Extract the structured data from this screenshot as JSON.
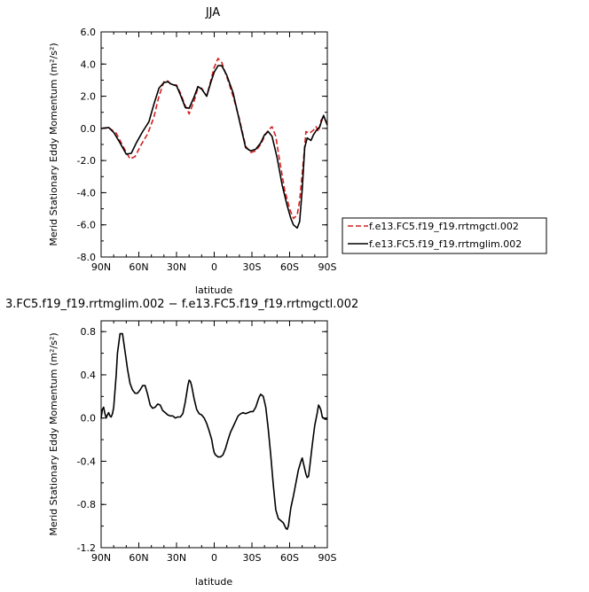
{
  "chart_data": [
    {
      "type": "line",
      "title": "JJA",
      "xlabel": "latitude",
      "ylabel": "Merid Stationary Eddy Momentum (m²/s²)",
      "xlim": [
        90,
        -90
      ],
      "ylim": [
        -8,
        6
      ],
      "xticks": [
        {
          "v": 90,
          "label": "90N"
        },
        {
          "v": 60,
          "label": "60N"
        },
        {
          "v": 30,
          "label": "30N"
        },
        {
          "v": 0,
          "label": "0"
        },
        {
          "v": -30,
          "label": "30S"
        },
        {
          "v": -60,
          "label": "60S"
        },
        {
          "v": -90,
          "label": "90S"
        }
      ],
      "yticks": [
        {
          "v": 6,
          "label": "6.0"
        },
        {
          "v": 4,
          "label": "4.0"
        },
        {
          "v": 2,
          "label": "2.0"
        },
        {
          "v": 0,
          "label": "0.0"
        },
        {
          "v": -2,
          "label": "-2.0"
        },
        {
          "v": -4,
          "label": "-4.0"
        },
        {
          "v": -6,
          "label": "-6.0"
        },
        {
          "v": -8,
          "label": "-8.0"
        }
      ],
      "legend": "right",
      "series": [
        {
          "name": "f.e13.FC5.f19_f19.rrtmgctl.002",
          "color": "#d42020",
          "dash": "dashed",
          "points": [
            [
              90,
              0
            ],
            [
              84,
              0.05
            ],
            [
              78,
              -0.3
            ],
            [
              72,
              -1.2
            ],
            [
              67,
              -1.9
            ],
            [
              63,
              -1.75
            ],
            [
              58,
              -1.0
            ],
            [
              53,
              -0.35
            ],
            [
              48,
              0.7
            ],
            [
              44,
              2.0
            ],
            [
              40,
              2.9
            ],
            [
              37,
              2.95
            ],
            [
              34,
              2.7
            ],
            [
              30,
              2.7
            ],
            [
              27,
              2.2
            ],
            [
              23,
              1.4
            ],
            [
              20,
              0.9
            ],
            [
              16,
              1.7
            ],
            [
              13,
              2.5
            ],
            [
              10,
              2.5
            ],
            [
              6,
              2.0
            ],
            [
              3,
              2.9
            ],
            [
              0,
              3.8
            ],
            [
              -3,
              4.35
            ],
            [
              -6,
              4.1
            ],
            [
              -10,
              3.2
            ],
            [
              -15,
              2.0
            ],
            [
              -20,
              0.6
            ],
            [
              -25,
              -1.1
            ],
            [
              -29,
              -1.5
            ],
            [
              -33,
              -1.4
            ],
            [
              -37,
              -1.0
            ],
            [
              -40,
              -0.5
            ],
            [
              -43,
              -0.1
            ],
            [
              -46,
              0.1
            ],
            [
              -49,
              -0.5
            ],
            [
              -52,
              -2.0
            ],
            [
              -56,
              -3.8
            ],
            [
              -60,
              -5.0
            ],
            [
              -63,
              -5.6
            ],
            [
              -66,
              -5.4
            ],
            [
              -68,
              -4.5
            ],
            [
              -71,
              -2.0
            ],
            [
              -73,
              -0.2
            ],
            [
              -76,
              -0.3
            ],
            [
              -79,
              -0.1
            ],
            [
              -81,
              0.1
            ],
            [
              -83,
              -0.2
            ],
            [
              -85,
              0.5
            ],
            [
              -87,
              0.7
            ],
            [
              -90,
              0.3
            ]
          ]
        },
        {
          "name": "f.e13.FC5.f19_f19.rrtmglim.002",
          "color": "#000000",
          "dash": "solid",
          "points": [
            [
              90,
              0
            ],
            [
              84,
              0.05
            ],
            [
              80,
              -0.25
            ],
            [
              75,
              -0.9
            ],
            [
              70,
              -1.6
            ],
            [
              66,
              -1.55
            ],
            [
              62,
              -0.9
            ],
            [
              57,
              -0.2
            ],
            [
              52,
              0.4
            ],
            [
              48,
              1.5
            ],
            [
              44,
              2.5
            ],
            [
              40,
              2.85
            ],
            [
              37,
              2.9
            ],
            [
              34,
              2.75
            ],
            [
              30,
              2.65
            ],
            [
              27,
              2.1
            ],
            [
              23,
              1.3
            ],
            [
              20,
              1.25
            ],
            [
              16,
              1.95
            ],
            [
              13,
              2.6
            ],
            [
              10,
              2.45
            ],
            [
              6,
              2.0
            ],
            [
              3,
              2.8
            ],
            [
              0,
              3.5
            ],
            [
              -3,
              3.9
            ],
            [
              -6,
              3.9
            ],
            [
              -10,
              3.3
            ],
            [
              -15,
              2.2
            ],
            [
              -20,
              0.5
            ],
            [
              -25,
              -1.2
            ],
            [
              -29,
              -1.4
            ],
            [
              -33,
              -1.3
            ],
            [
              -37,
              -0.9
            ],
            [
              -40,
              -0.4
            ],
            [
              -43,
              -0.2
            ],
            [
              -46,
              -0.5
            ],
            [
              -50,
              -1.8
            ],
            [
              -54,
              -3.5
            ],
            [
              -58,
              -4.8
            ],
            [
              -61,
              -5.6
            ],
            [
              -63,
              -6.0
            ],
            [
              -66,
              -6.2
            ],
            [
              -68,
              -5.8
            ],
            [
              -70,
              -3.8
            ],
            [
              -72,
              -1.2
            ],
            [
              -74,
              -0.6
            ],
            [
              -77,
              -0.75
            ],
            [
              -79,
              -0.4
            ],
            [
              -81,
              -0.15
            ],
            [
              -84,
              0.1
            ],
            [
              -86,
              0.6
            ],
            [
              -87,
              0.8
            ],
            [
              -90,
              0.2
            ]
          ]
        }
      ]
    },
    {
      "type": "line",
      "title": "3.FC5.f19_f19.rrtmglim.002 − f.e13.FC5.f19_f19.rrtmgctl.002",
      "xlabel": "latitude",
      "ylabel": "Merid Stationary Eddy Momentum (m²/s²)",
      "xlim": [
        90,
        -90
      ],
      "ylim": [
        -1.2,
        0.9
      ],
      "xticks": [
        {
          "v": 90,
          "label": "90N"
        },
        {
          "v": 60,
          "label": "60N"
        },
        {
          "v": 30,
          "label": "30N"
        },
        {
          "v": 0,
          "label": "0"
        },
        {
          "v": -30,
          "label": "30S"
        },
        {
          "v": -60,
          "label": "60S"
        },
        {
          "v": -90,
          "label": "90S"
        }
      ],
      "yticks": [
        {
          "v": 0.8,
          "label": "0.8"
        },
        {
          "v": 0.4,
          "label": "0.4"
        },
        {
          "v": 0,
          "label": "0.0"
        },
        {
          "v": -0.4,
          "label": "-0.4"
        },
        {
          "v": -0.8,
          "label": "-0.8"
        },
        {
          "v": -1.2,
          "label": "-1.2"
        }
      ],
      "series": [
        {
          "color": "#000000",
          "dash": "solid",
          "points": [
            [
              90,
              0.0
            ],
            [
              89,
              0.08
            ],
            [
              88,
              0.1
            ],
            [
              87,
              0.04
            ],
            [
              86,
              0.0
            ],
            [
              85,
              0.03
            ],
            [
              84,
              0.05
            ],
            [
              83,
              0.02
            ],
            [
              82,
              0.01
            ],
            [
              81,
              0.04
            ],
            [
              80,
              0.1
            ],
            [
              79,
              0.25
            ],
            [
              78,
              0.4
            ],
            [
              77,
              0.6
            ],
            [
              75,
              0.78
            ],
            [
              73,
              0.78
            ],
            [
              71,
              0.62
            ],
            [
              69,
              0.45
            ],
            [
              67,
              0.32
            ],
            [
              65,
              0.26
            ],
            [
              63,
              0.23
            ],
            [
              61,
              0.23
            ],
            [
              59,
              0.26
            ],
            [
              57,
              0.3
            ],
            [
              55,
              0.3
            ],
            [
              53,
              0.22
            ],
            [
              51,
              0.12
            ],
            [
              49,
              0.09
            ],
            [
              47,
              0.1
            ],
            [
              45,
              0.13
            ],
            [
              43,
              0.12
            ],
            [
              41,
              0.07
            ],
            [
              39,
              0.05
            ],
            [
              37,
              0.03
            ],
            [
              35,
              0.02
            ],
            [
              33,
              0.02
            ],
            [
              31,
              0.0
            ],
            [
              29,
              0.01
            ],
            [
              27,
              0.01
            ],
            [
              25,
              0.04
            ],
            [
              23,
              0.15
            ],
            [
              21,
              0.3
            ],
            [
              20,
              0.35
            ],
            [
              19,
              0.34
            ],
            [
              18,
              0.3
            ],
            [
              16,
              0.18
            ],
            [
              14,
              0.08
            ],
            [
              12,
              0.04
            ],
            [
              10,
              0.03
            ],
            [
              8,
              0.0
            ],
            [
              6,
              -0.05
            ],
            [
              4,
              -0.12
            ],
            [
              2,
              -0.2
            ],
            [
              1,
              -0.27
            ],
            [
              0,
              -0.32
            ],
            [
              -1,
              -0.34
            ],
            [
              -3,
              -0.36
            ],
            [
              -5,
              -0.36
            ],
            [
              -7,
              -0.34
            ],
            [
              -9,
              -0.28
            ],
            [
              -11,
              -0.2
            ],
            [
              -13,
              -0.13
            ],
            [
              -15,
              -0.08
            ],
            [
              -17,
              -0.03
            ],
            [
              -19,
              0.02
            ],
            [
              -21,
              0.04
            ],
            [
              -23,
              0.05
            ],
            [
              -25,
              0.04
            ],
            [
              -27,
              0.05
            ],
            [
              -29,
              0.06
            ],
            [
              -31,
              0.06
            ],
            [
              -33,
              0.1
            ],
            [
              -35,
              0.17
            ],
            [
              -36,
              0.2
            ],
            [
              -37,
              0.22
            ],
            [
              -39,
              0.2
            ],
            [
              -41,
              0.1
            ],
            [
              -43,
              -0.1
            ],
            [
              -45,
              -0.35
            ],
            [
              -47,
              -0.62
            ],
            [
              -49,
              -0.85
            ],
            [
              -51,
              -0.93
            ],
            [
              -53,
              -0.95
            ],
            [
              -55,
              -0.97
            ],
            [
              -57,
              -1.02
            ],
            [
              -58,
              -1.03
            ],
            [
              -59,
              -1.0
            ],
            [
              -61,
              -0.83
            ],
            [
              -63,
              -0.72
            ],
            [
              -65,
              -0.6
            ],
            [
              -67,
              -0.48
            ],
            [
              -69,
              -0.4
            ],
            [
              -70,
              -0.37
            ],
            [
              -71,
              -0.42
            ],
            [
              -73,
              -0.52
            ],
            [
              -74,
              -0.55
            ],
            [
              -75,
              -0.54
            ],
            [
              -76,
              -0.45
            ],
            [
              -78,
              -0.25
            ],
            [
              -80,
              -0.07
            ],
            [
              -82,
              0.05
            ],
            [
              -83,
              0.12
            ],
            [
              -84,
              0.1
            ],
            [
              -85,
              0.07
            ],
            [
              -86,
              0.01
            ],
            [
              -88,
              -0.01
            ],
            [
              -90,
              -0.01
            ]
          ]
        }
      ]
    }
  ]
}
